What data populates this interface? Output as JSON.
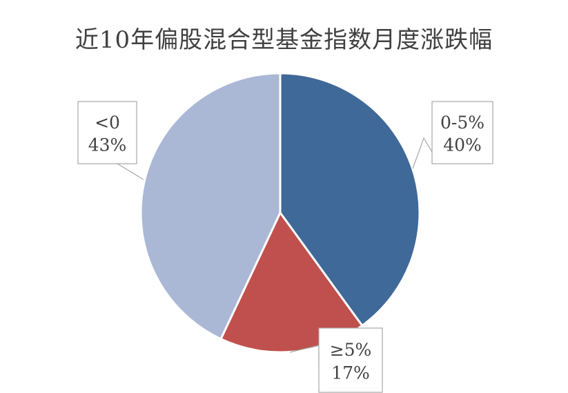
{
  "chart_data": {
    "type": "pie",
    "title": "近10年偏股混合型基金指数月度涨跌幅",
    "slices": [
      {
        "category": "0-5%",
        "value": 40,
        "label": "40%",
        "color": "#3f6998"
      },
      {
        "category": "≥5%",
        "value": 17,
        "label": "17%",
        "color": "#c0504d"
      },
      {
        "category": "<0",
        "value": 43,
        "label": "43%",
        "color": "#aab8d6"
      }
    ]
  }
}
